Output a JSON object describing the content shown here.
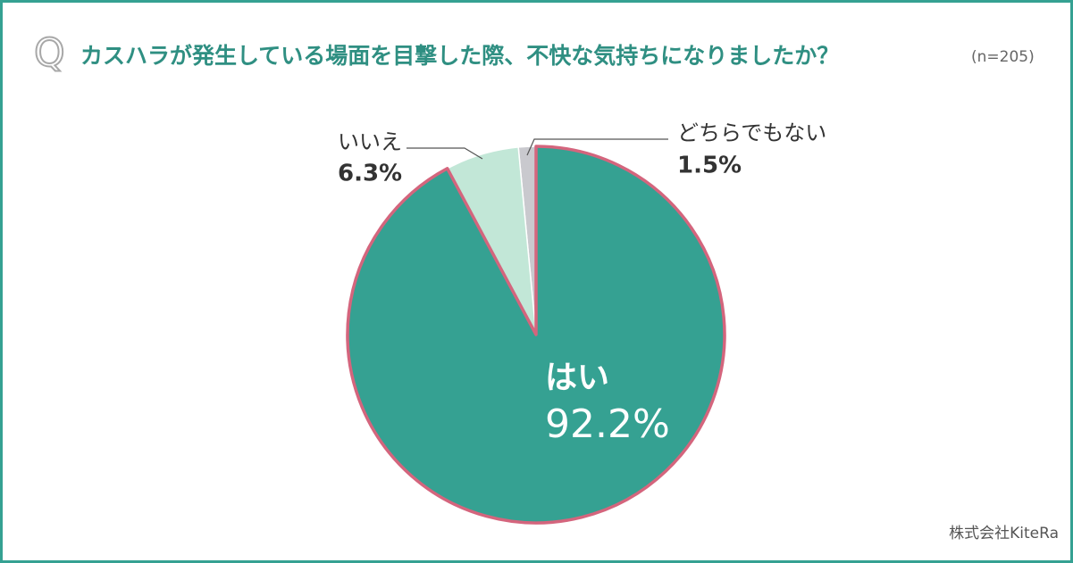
{
  "chart_data": {
    "type": "pie",
    "question_mark": "Q",
    "title": "カスハラが発生している場面を目撃した際、不快な気持ちになりましたか？",
    "sample_size": "(n=205)",
    "categories": [
      "はい",
      "いいえ",
      "どちらでもない"
    ],
    "values": [
      92.2,
      6.3,
      1.5
    ],
    "value_labels": [
      "92.2%",
      "6.3%",
      "1.5%"
    ],
    "colors": [
      "#35a192",
      "#c2e7d7",
      "#c9c9ce"
    ],
    "source": "株式会社KiteRa"
  }
}
